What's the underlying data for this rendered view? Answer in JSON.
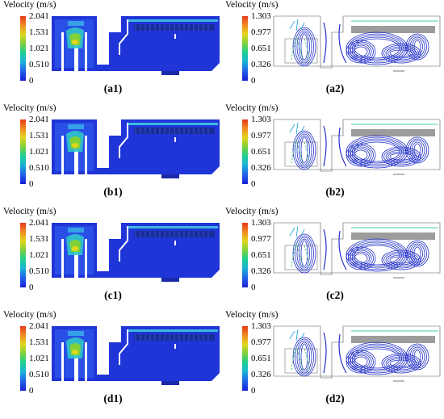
{
  "panels": [
    {
      "id": "a1",
      "type": "contour",
      "title": "Velocity (m/s)",
      "ticks": [
        "2.041",
        "1.531",
        "1.021",
        "0.510",
        "0"
      ],
      "label": "(a1)"
    },
    {
      "id": "a2",
      "type": "stream",
      "title": "Velocity (m/s)",
      "ticks": [
        "1.303",
        "0.977",
        "0.651",
        "0.326",
        "0"
      ],
      "label": "(a2)"
    },
    {
      "id": "b1",
      "type": "contour",
      "title": "Velocity (m/s)",
      "ticks": [
        "2.041",
        "1.531",
        "1.021",
        "0.510",
        "0"
      ],
      "label": "(b1)"
    },
    {
      "id": "b2",
      "type": "stream",
      "title": "Velocity (m/s)",
      "ticks": [
        "1.303",
        "0.977",
        "0.651",
        "0.326",
        "0"
      ],
      "label": "(b2)"
    },
    {
      "id": "c1",
      "type": "contour",
      "title": "Velocity (m/s)",
      "ticks": [
        "2.041",
        "1.531",
        "1.021",
        "0.510",
        "0"
      ],
      "label": "(c1)"
    },
    {
      "id": "c2",
      "type": "stream",
      "title": "Velocity (m/s)",
      "ticks": [
        "1.303",
        "0.977",
        "0.651",
        "0.326",
        "0"
      ],
      "label": "(c2)"
    },
    {
      "id": "d1",
      "type": "contour",
      "title": "Velocity (m/s)",
      "ticks": [
        "2.041",
        "1.531",
        "1.021",
        "0.510",
        "0"
      ],
      "label": "(d1)"
    },
    {
      "id": "d2",
      "type": "stream",
      "title": "Velocity (m/s)",
      "ticks": [
        "1.303",
        "0.977",
        "0.651",
        "0.326",
        "0"
      ],
      "label": "(d2)"
    }
  ],
  "colors": {
    "field": "#1f35d8",
    "wall": "#ffffff",
    "streamline": "#2230c8",
    "baffle": "#9c9c9c",
    "jet": "#3fd3a0"
  }
}
